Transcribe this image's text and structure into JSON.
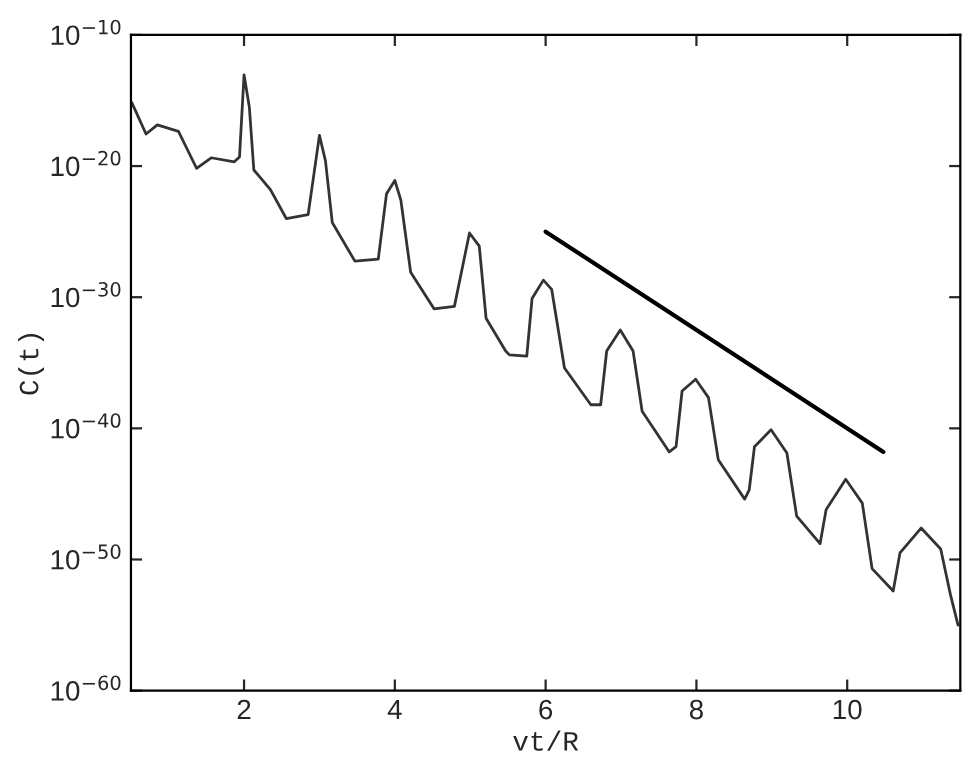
{
  "chart_data": {
    "type": "line",
    "xlabel": "vt/R",
    "ylabel": "C(t)",
    "log": "y",
    "grid": false,
    "legend": false,
    "marker": "none",
    "line_style": "solid",
    "xlim": [
      0.5,
      11.5
    ],
    "xticks": [
      2,
      4,
      6,
      8,
      10
    ],
    "ylim": [
      1e-60,
      1e-10
    ],
    "yticks": [
      {
        "value": 1e-60,
        "label": "10$^{−60}$"
      },
      {
        "value": 1e-50,
        "label": "10$^{−50}$"
      },
      {
        "value": 1e-40,
        "label": "10$^{−40}$"
      },
      {
        "value": 1e-30,
        "label": "10$^{−30}$"
      },
      {
        "value": 1e-20,
        "label": "10$^{−20}$"
      },
      {
        "value": 1e-10,
        "label": "10$^{−10}$"
      }
    ],
    "series": [
      {
        "color": "#333333",
        "x": [
          0.51,
          0.7,
          0.85,
          1.13,
          1.37,
          1.565,
          1.87,
          1.94,
          2.0,
          2.07,
          2.13,
          2.35,
          2.56,
          2.85,
          3.0,
          3.08,
          3.17,
          3.47,
          3.78,
          3.89,
          4.0,
          4.08,
          4.21,
          4.52,
          4.79,
          4.99,
          5.12,
          5.21,
          5.47,
          5.52,
          5.75,
          5.82,
          5.97,
          6.08,
          6.25,
          6.6,
          6.73,
          6.81,
          6.99,
          7.16,
          7.28,
          7.64,
          7.73,
          7.81,
          7.99,
          8.16,
          8.29,
          8.64,
          8.7,
          8.77,
          8.99,
          9.2,
          9.33,
          9.64,
          9.72,
          9.98,
          10.2,
          10.33,
          10.61,
          10.7,
          10.98,
          11.24,
          11.37,
          11.47
        ],
        "values": [
          7.1e-16,
          2.8e-18,
          1.4e-17,
          4.4e-18,
          6.8e-21,
          4.3e-20,
          2.1e-20,
          5e-20,
          9.1e-14,
          3.2e-16,
          5e-21,
          1.6e-22,
          1e-24,
          2e-24,
          2.2e-18,
          2.5e-20,
          5e-25,
          5.6e-28,
          7.9e-28,
          7.9e-23,
          7.9e-22,
          2.5e-23,
          7.9e-29,
          1.3e-31,
          2e-31,
          7.9e-26,
          7.9e-27,
          2.5e-32,
          7.9e-35,
          4e-35,
          3.2e-35,
          7.9e-31,
          2e-29,
          4e-30,
          4e-36,
          6.3e-39,
          6.3e-39,
          7.9e-35,
          3.2e-33,
          7.9e-35,
          2e-39,
          1.6e-42,
          4e-42,
          7.1e-38,
          5.6e-37,
          2.2e-38,
          4e-43,
          4e-46,
          2e-45,
          4e-42,
          7.9e-41,
          1.3e-42,
          2e-47,
          1.6e-49,
          6.3e-47,
          1.3e-44,
          2e-46,
          2e-51,
          4e-53,
          3.2e-50,
          2.5e-48,
          6.3e-50,
          2e-53,
          1e-55
        ]
      },
      {
        "color": "#000000",
        "x": [
          6.0,
          10.48
        ],
        "values": [
          1e-25,
          1.6e-42
        ]
      }
    ]
  }
}
